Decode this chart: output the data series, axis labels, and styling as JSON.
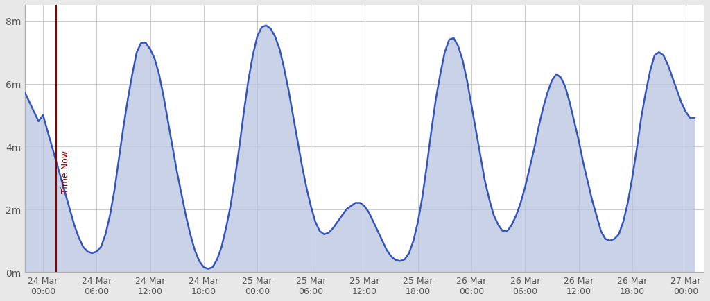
{
  "background_color": "#e8e8e8",
  "plot_background_color": "#ffffff",
  "line_color": "#3355bb",
  "fill_color": "#b8c4e0",
  "fill_alpha": 0.75,
  "time_now_color": "#880000",
  "grid_color": "#cccccc",
  "text_color": "#555555",
  "ylim": [
    0,
    8.5
  ],
  "yticks": [
    0,
    2,
    4,
    6,
    8
  ],
  "ytick_labels": [
    "0m",
    "2m",
    "4m",
    "6m",
    "8m"
  ],
  "xtick_labels": [
    "24 Mar\n00:00",
    "24 Mar\n06:00",
    "24 Mar\n12:00",
    "24 Mar\n18:00",
    "25 Mar\n00:00",
    "25 Mar\n06:00",
    "25 Mar\n12:00",
    "25 Mar\n18:00",
    "26 Mar\n00:00",
    "26 Mar\n06:00",
    "26 Mar\n12:00",
    "26 Mar\n18:00",
    "27 Mar\n00:00"
  ],
  "time_now_x": 1.5,
  "time_now_label": "Time Now",
  "xlim_start": -2.0,
  "xlim_end": 74.0,
  "tide_times": [
    -2.0,
    -1.5,
    -1.0,
    -0.5,
    0.0,
    0.5,
    1.0,
    1.5,
    2.0,
    2.5,
    3.0,
    3.5,
    4.0,
    4.5,
    5.0,
    5.5,
    6.0,
    6.5,
    7.0,
    7.5,
    8.0,
    8.5,
    9.0,
    9.5,
    10.0,
    10.5,
    11.0,
    11.5,
    12.0,
    12.5,
    13.0,
    13.5,
    14.0,
    14.5,
    15.0,
    15.5,
    16.0,
    16.5,
    17.0,
    17.5,
    18.0,
    18.5,
    19.0,
    19.5,
    20.0,
    20.5,
    21.0,
    21.5,
    22.0,
    22.5,
    23.0,
    23.5,
    24.0,
    24.5,
    25.0,
    25.5,
    26.0,
    26.5,
    27.0,
    27.5,
    28.0,
    28.5,
    29.0,
    29.5,
    30.0,
    30.5,
    31.0,
    31.5,
    32.0,
    32.5,
    33.0,
    33.5,
    34.0,
    34.5,
    35.0,
    35.5,
    36.0,
    36.5,
    37.0,
    37.5,
    38.0,
    38.5,
    39.0,
    39.5,
    40.0,
    40.5,
    41.0,
    41.5,
    42.0,
    42.5,
    43.0,
    43.5,
    44.0,
    44.5,
    45.0,
    45.5,
    46.0,
    46.5,
    47.0,
    47.5,
    48.0,
    48.5,
    49.0,
    49.5,
    50.0,
    50.5,
    51.0,
    51.5,
    52.0,
    52.5,
    53.0,
    53.5,
    54.0,
    54.5,
    55.0,
    55.5,
    56.0,
    56.5,
    57.0,
    57.5,
    58.0,
    58.5,
    59.0,
    59.5,
    60.0,
    60.5,
    61.0,
    61.5,
    62.0,
    62.5,
    63.0,
    63.5,
    64.0,
    64.5,
    65.0,
    65.5,
    66.0,
    66.5,
    67.0,
    67.5,
    68.0,
    68.5,
    69.0,
    69.5,
    70.0,
    70.5,
    71.0,
    71.5,
    72.0,
    72.5,
    73.0
  ],
  "tide_heights": [
    5.7,
    5.4,
    5.1,
    4.8,
    5.0,
    4.5,
    4.0,
    3.5,
    3.0,
    2.5,
    2.0,
    1.5,
    1.1,
    0.8,
    0.65,
    0.6,
    0.65,
    0.8,
    1.2,
    1.8,
    2.6,
    3.6,
    4.6,
    5.5,
    6.3,
    7.0,
    7.3,
    7.3,
    7.1,
    6.8,
    6.3,
    5.6,
    4.8,
    4.0,
    3.2,
    2.5,
    1.8,
    1.2,
    0.7,
    0.35,
    0.15,
    0.1,
    0.15,
    0.4,
    0.8,
    1.4,
    2.1,
    3.0,
    4.0,
    5.1,
    6.1,
    6.9,
    7.5,
    7.8,
    7.85,
    7.75,
    7.5,
    7.1,
    6.5,
    5.8,
    5.0,
    4.2,
    3.4,
    2.7,
    2.1,
    1.6,
    1.3,
    1.2,
    1.25,
    1.4,
    1.6,
    1.8,
    2.0,
    2.1,
    2.2,
    2.2,
    2.1,
    1.9,
    1.6,
    1.3,
    1.0,
    0.7,
    0.5,
    0.38,
    0.35,
    0.4,
    0.6,
    1.0,
    1.6,
    2.4,
    3.4,
    4.5,
    5.5,
    6.3,
    7.0,
    7.4,
    7.45,
    7.2,
    6.75,
    6.1,
    5.3,
    4.5,
    3.7,
    2.9,
    2.3,
    1.8,
    1.5,
    1.3,
    1.3,
    1.5,
    1.8,
    2.2,
    2.7,
    3.3,
    3.9,
    4.6,
    5.2,
    5.7,
    6.1,
    6.3,
    6.2,
    5.9,
    5.4,
    4.8,
    4.2,
    3.5,
    2.9,
    2.3,
    1.8,
    1.3,
    1.05,
    1.0,
    1.05,
    1.2,
    1.6,
    2.2,
    3.0,
    3.9,
    4.9,
    5.7,
    6.4,
    6.9,
    7.0,
    6.9,
    6.6,
    6.2,
    5.8,
    5.4,
    5.1,
    4.9,
    4.9
  ]
}
